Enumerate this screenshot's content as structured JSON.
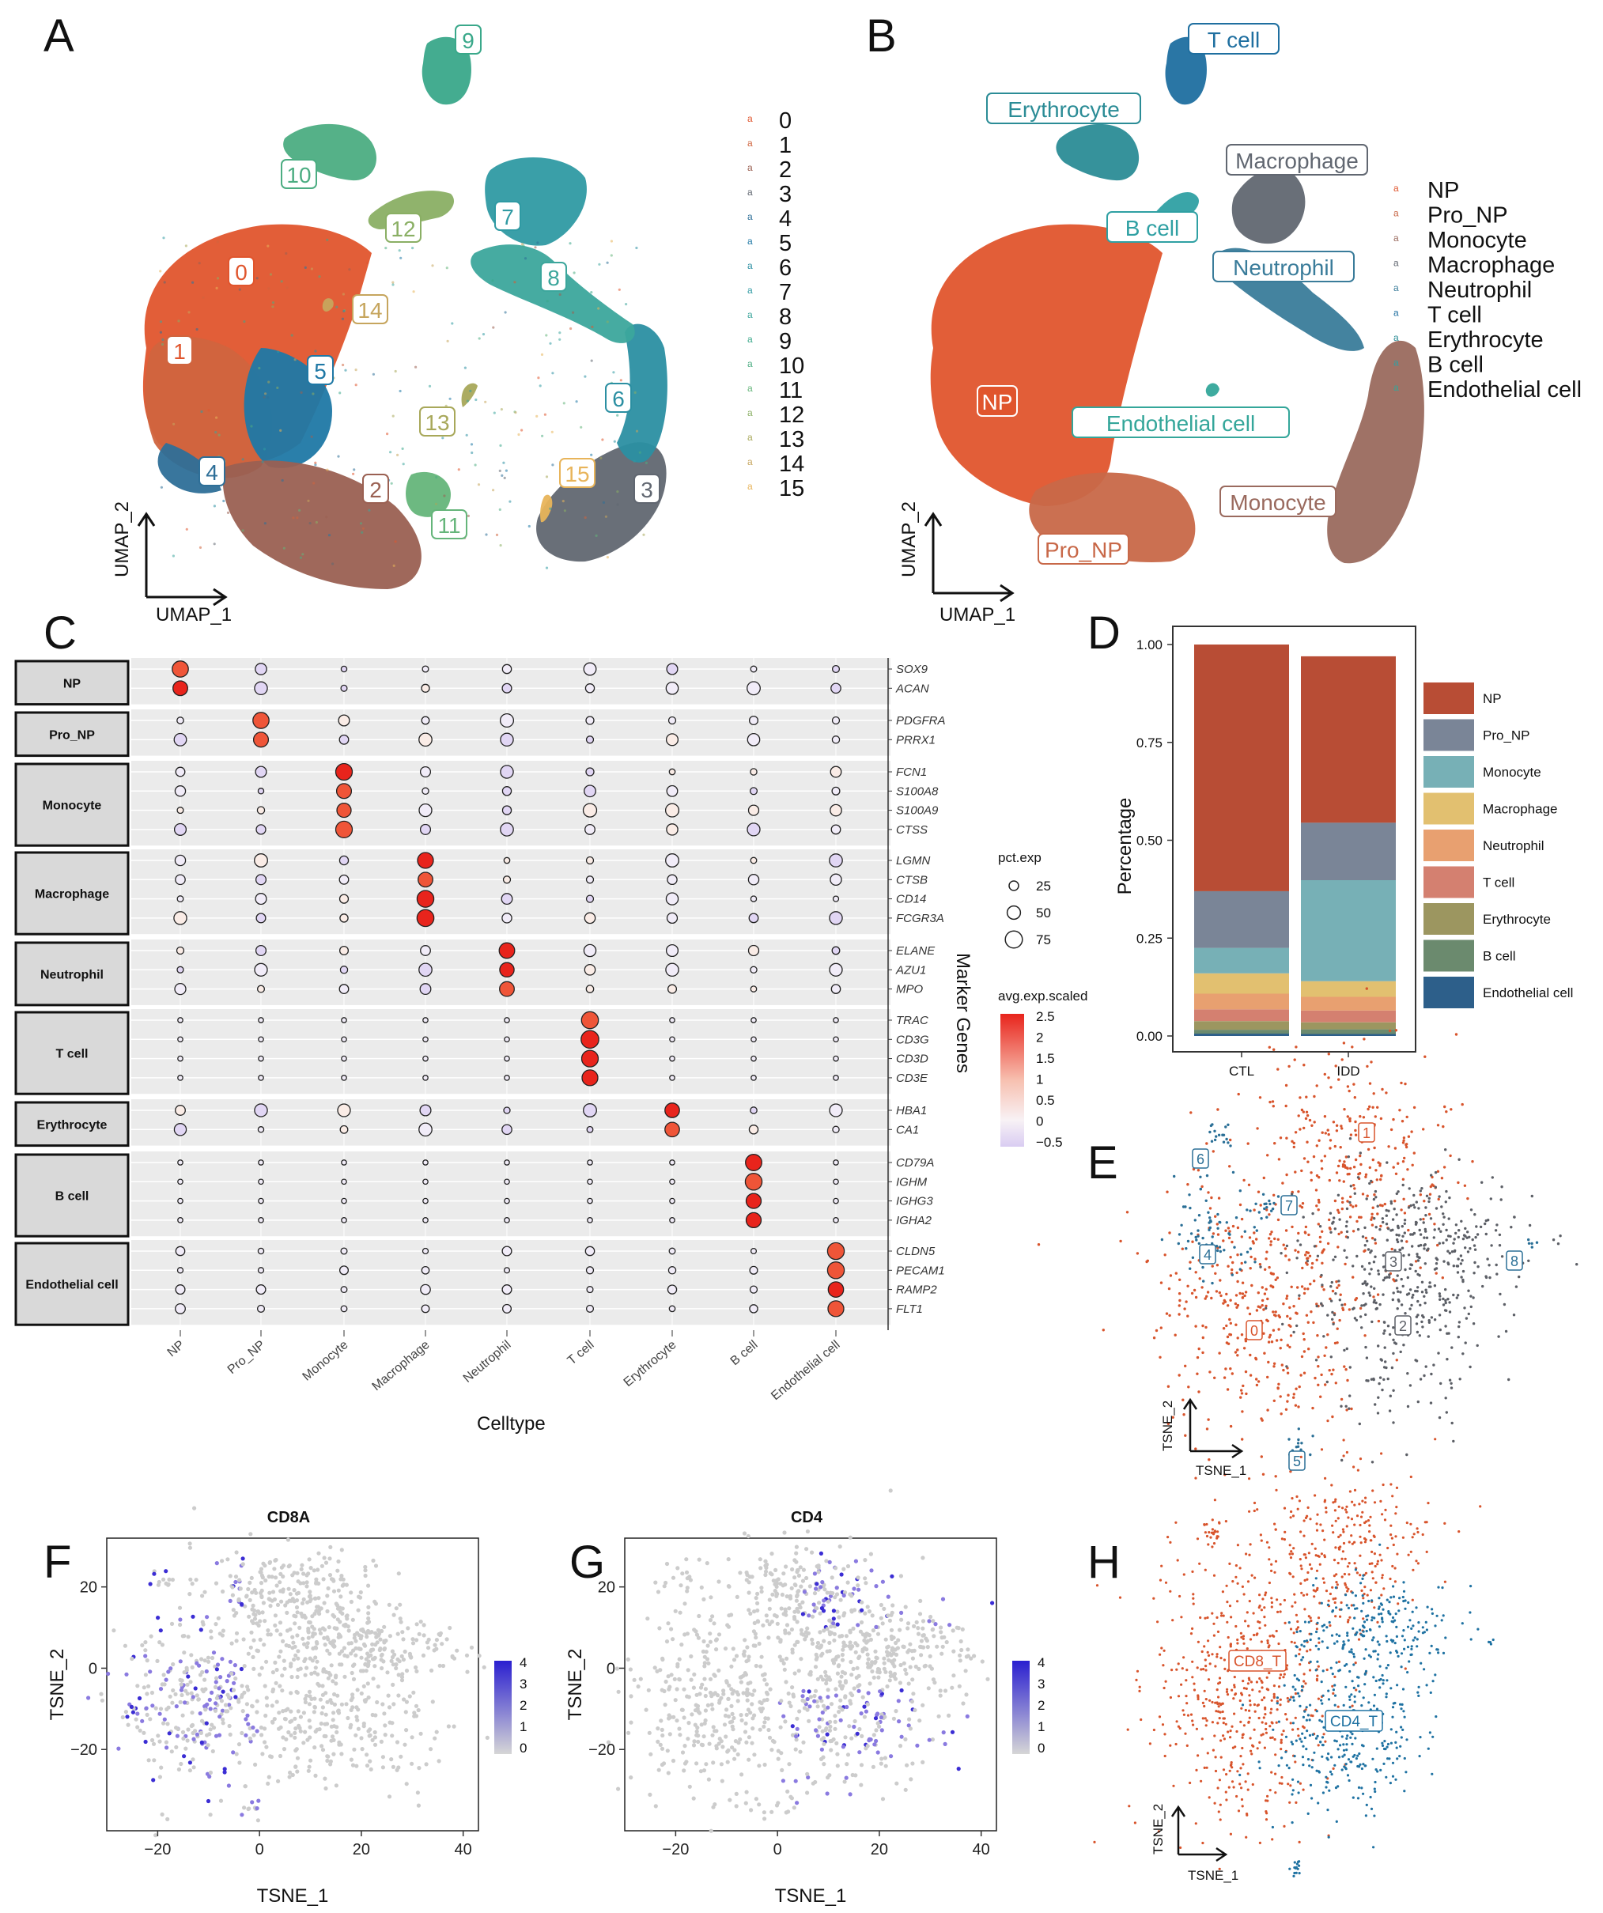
{
  "panels": {
    "A": "A",
    "B": "B",
    "C": "C",
    "D": "D",
    "E": "E",
    "F": "F",
    "G": "G",
    "H": "H"
  },
  "colors": {
    "NP": "#e0552d",
    "Pro_NP": "#c86848",
    "Monocyte": "#9a6a5e",
    "Macrophage": "#616771",
    "Neutrophil": "#3a7c9a",
    "T cell": "#1f6fa0",
    "Erythrocyte": "#2b8c96",
    "B cell": "#2fa0a3",
    "Endothelial cell": "#34a69a",
    "grey": "#cccccc",
    "purple": "#3b2dd4"
  },
  "umap": {
    "xlabel": "UMAP_1",
    "ylabel": "UMAP_2",
    "clusters": [
      "0",
      "1",
      "2",
      "3",
      "4",
      "5",
      "6",
      "7",
      "8",
      "9",
      "10",
      "11",
      "12",
      "13",
      "14",
      "15"
    ],
    "cluster_colors": [
      "#e0552d",
      "#d0643e",
      "#9a6052",
      "#616771",
      "#2e6f98",
      "#1f78a5",
      "#2b8fa2",
      "#2f9aa3",
      "#3ca69c",
      "#3aa88a",
      "#4cad82",
      "#65b57a",
      "#8aaf64",
      "#a8a85a",
      "#c6a55d",
      "#e8b45a"
    ],
    "celltypes": [
      "NP",
      "Pro_NP",
      "Monocyte",
      "Macrophage",
      "Neutrophil",
      "T cell",
      "Erythrocyte",
      "B cell",
      "Endothelial cell"
    ]
  },
  "chart_data": [
    {
      "type": "scatter",
      "panel": "A",
      "title": "",
      "xlabel": "UMAP_1",
      "ylabel": "UMAP_2",
      "legend": [
        "0",
        "1",
        "2",
        "3",
        "4",
        "5",
        "6",
        "7",
        "8",
        "9",
        "10",
        "11",
        "12",
        "13",
        "14",
        "15"
      ],
      "annotations": [
        "0",
        "1",
        "2",
        "3",
        "4",
        "5",
        "6",
        "7",
        "8",
        "9",
        "10",
        "11",
        "12",
        "13",
        "14",
        "15"
      ]
    },
    {
      "type": "scatter",
      "panel": "B",
      "xlabel": "UMAP_1",
      "ylabel": "UMAP_2",
      "legend": [
        "NP",
        "Pro_NP",
        "Monocyte",
        "Macrophage",
        "Neutrophil",
        "T cell",
        "Erythrocyte",
        "B cell",
        "Endothelial cell"
      ],
      "annotations": [
        "T cell",
        "Erythrocyte",
        "Macrophage",
        "B cell",
        "Neutrophil",
        "NP",
        "Endothelial cell",
        "Monocyte",
        "Pro_NP"
      ]
    },
    {
      "type": "dotplot",
      "panel": "C",
      "xlabel": "Celltype",
      "ylabel": "Marker Genes",
      "celltypes": [
        "NP",
        "Pro_NP",
        "Monocyte",
        "Macrophage",
        "Neutrophil",
        "T cell",
        "Erythrocyte",
        "B cell",
        "Endothelial cell"
      ],
      "groups": [
        {
          "name": "NP",
          "genes": [
            "SOX9",
            "ACAN"
          ]
        },
        {
          "name": "Pro_NP",
          "genes": [
            "PDGFRA",
            "PRRX1"
          ]
        },
        {
          "name": "Monocyte",
          "genes": [
            "FCN1",
            "S100A8",
            "S100A9",
            "CTSS"
          ]
        },
        {
          "name": "Macrophage",
          "genes": [
            "LGMN",
            "CTSB",
            "CD14",
            "FCGR3A"
          ]
        },
        {
          "name": "Neutrophil",
          "genes": [
            "ELANE",
            "AZU1",
            "MPO"
          ]
        },
        {
          "name": "T cell",
          "genes": [
            "TRAC",
            "CD3G",
            "CD3D",
            "CD3E"
          ]
        },
        {
          "name": "Erythrocyte",
          "genes": [
            "HBA1",
            "CA1"
          ]
        },
        {
          "name": "B cell",
          "genes": [
            "CD79A",
            "IGHM",
            "IGHG3",
            "IGHA2"
          ]
        },
        {
          "name": "Endothelial cell",
          "genes": [
            "CLDN5",
            "PECAM1",
            "RAMP2",
            "FLT1"
          ]
        }
      ],
      "size_legend": {
        "title": "pct.exp",
        "values": [
          25,
          50,
          75
        ]
      },
      "color_legend": {
        "title": "avg.exp.scaled",
        "ticks": [
          2.5,
          2.0,
          1.5,
          1.0,
          0.5,
          0.0,
          -0.5
        ]
      }
    },
    {
      "type": "bar",
      "panel": "D",
      "stacked": true,
      "categories": [
        "CTL",
        "IDD"
      ],
      "ylabel": "Percentage",
      "ylim": [
        0,
        1.0
      ],
      "yticks": [
        "0.00",
        "0.25",
        "0.50",
        "0.75",
        "1.00"
      ],
      "series": [
        {
          "name": "Endothelial cell",
          "color": "#2d5f8a",
          "values": [
            0.006,
            0.005
          ]
        },
        {
          "name": "B cell",
          "color": "#6b8a6e",
          "values": [
            0.01,
            0.012
          ]
        },
        {
          "name": "Erythrocyte",
          "color": "#9c9660",
          "values": [
            0.022,
            0.018
          ]
        },
        {
          "name": "T cell",
          "color": "#d48070",
          "values": [
            0.03,
            0.03
          ]
        },
        {
          "name": "Neutrophil",
          "color": "#e8a070",
          "values": [
            0.04,
            0.035
          ]
        },
        {
          "name": "Macrophage",
          "color": "#e2c070",
          "values": [
            0.052,
            0.04
          ]
        },
        {
          "name": "Monocyte",
          "color": "#77b0b6",
          "values": [
            0.065,
            0.258
          ]
        },
        {
          "name": "Pro_NP",
          "color": "#7a8597",
          "values": [
            0.145,
            0.147
          ]
        },
        {
          "name": "NP",
          "color": "#b84d35",
          "values": [
            0.63,
            0.425
          ]
        }
      ],
      "legend": [
        "NP",
        "Pro_NP",
        "Monocyte",
        "Macrophage",
        "Neutrophil",
        "T cell",
        "Erythrocyte",
        "B cell",
        "Endothelial cell"
      ]
    },
    {
      "type": "scatter",
      "panel": "E",
      "xlabel": "TSNE_1",
      "ylabel": "TSNE_2",
      "annotations": [
        "0",
        "1",
        "2",
        "3",
        "4",
        "5",
        "6",
        "7",
        "8"
      ]
    },
    {
      "type": "scatter",
      "panel": "F",
      "title": "CD8A",
      "xlabel": "TSNE_1",
      "ylabel": "TSNE_2",
      "xticks": [
        "−20",
        "0",
        "20",
        "40"
      ],
      "yticks": [
        "20",
        "0",
        "−20"
      ],
      "color_ticks": [
        "4",
        "3",
        "2",
        "1",
        "0"
      ]
    },
    {
      "type": "scatter",
      "panel": "G",
      "title": "CD4",
      "xlabel": "TSNE_1",
      "ylabel": "TSNE_2",
      "xticks": [
        "−20",
        "0",
        "20",
        "40"
      ],
      "yticks": [
        "20",
        "0",
        "−20"
      ],
      "color_ticks": [
        "4",
        "3",
        "2",
        "1",
        "0"
      ]
    },
    {
      "type": "scatter",
      "panel": "H",
      "xlabel": "TSNE_1",
      "ylabel": "TSNE_2",
      "annotations": [
        "CD8_T",
        "CD4_T"
      ]
    }
  ]
}
